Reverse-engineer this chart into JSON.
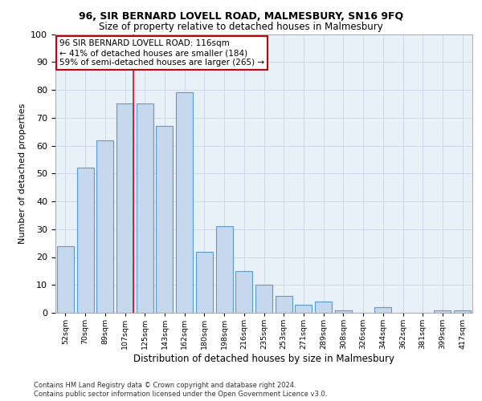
{
  "title1": "96, SIR BERNARD LOVELL ROAD, MALMESBURY, SN16 9FQ",
  "title2": "Size of property relative to detached houses in Malmesbury",
  "xlabel": "Distribution of detached houses by size in Malmesbury",
  "ylabel": "Number of detached properties",
  "footnote1": "Contains HM Land Registry data © Crown copyright and database right 2024.",
  "footnote2": "Contains public sector information licensed under the Open Government Licence v3.0.",
  "bar_labels": [
    "52sqm",
    "70sqm",
    "89sqm",
    "107sqm",
    "125sqm",
    "143sqm",
    "162sqm",
    "180sqm",
    "198sqm",
    "216sqm",
    "235sqm",
    "253sqm",
    "271sqm",
    "289sqm",
    "308sqm",
    "326sqm",
    "344sqm",
    "362sqm",
    "381sqm",
    "399sqm",
    "417sqm"
  ],
  "bar_values": [
    24,
    52,
    62,
    75,
    75,
    67,
    79,
    22,
    31,
    15,
    10,
    6,
    3,
    4,
    1,
    0,
    2,
    0,
    0,
    1,
    1
  ],
  "bar_color": "#c5d8ed",
  "bar_edgecolor": "#5b9bd5",
  "annotation_title": "96 SIR BERNARD LOVELL ROAD: 116sqm",
  "annotation_line1": "← 41% of detached houses are smaller (184)",
  "annotation_line2": "59% of semi-detached houses are larger (265) →",
  "annotation_box_color": "#ffffff",
  "annotation_border_color": "#cc0000",
  "grid_color": "#d0d8e8",
  "background_color": "#e8f0f8",
  "ylim": [
    0,
    100
  ],
  "yticks": [
    0,
    10,
    20,
    30,
    40,
    50,
    60,
    70,
    80,
    90,
    100
  ],
  "red_line_x": 3.42
}
